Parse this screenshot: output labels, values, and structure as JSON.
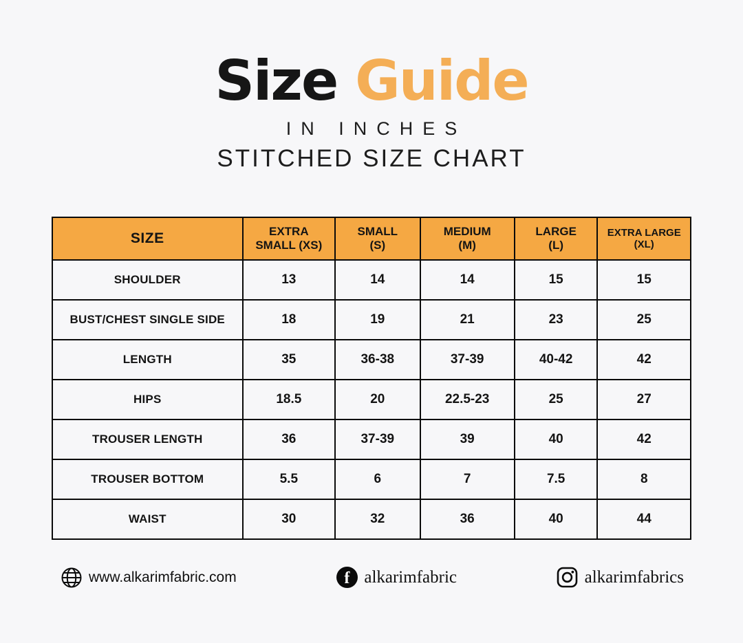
{
  "title": {
    "word_black": "Size",
    "word_orange": "Guide"
  },
  "subtitle_inches": "IN INCHES",
  "subtitle_chart": "STITCHED SIZE CHART",
  "colors": {
    "header_orange": "#f5a843",
    "title_orange": "#f4ae56",
    "text_black": "#141414",
    "background": "#f7f7f9",
    "border_black": "#0a0a0a"
  },
  "chart_data": {
    "type": "table",
    "title": "Size Guide in inches — Stitched Size Chart",
    "columns": [
      "SIZE",
      "EXTRA SMALL (XS)",
      "SMALL (S)",
      "MEDIUM (M)",
      "LARGE (L)",
      "EXTRA LARGE (XL)"
    ],
    "rows": [
      {
        "label": "SHOULDER",
        "values": [
          "13",
          "14",
          "14",
          "15",
          "15"
        ]
      },
      {
        "label": "BUST/CHEST SINGLE SIDE",
        "values": [
          "18",
          "19",
          "21",
          "23",
          "25"
        ]
      },
      {
        "label": "LENGTH",
        "values": [
          "35",
          "36-38",
          "37-39",
          "40-42",
          "42"
        ]
      },
      {
        "label": "HIPS",
        "values": [
          "18.5",
          "20",
          "22.5-23",
          "25",
          "27"
        ]
      },
      {
        "label": "TROUSER LENGTH",
        "values": [
          "36",
          "37-39",
          "39",
          "40",
          "42"
        ]
      },
      {
        "label": "TROUSER BOTTOM",
        "values": [
          "5.5",
          "6",
          "7",
          "7.5",
          "8"
        ]
      },
      {
        "label": "WAIST",
        "values": [
          "30",
          "32",
          "36",
          "40",
          "44"
        ]
      }
    ]
  },
  "table_header_lines": [
    {
      "key": "size",
      "lines": [
        "SIZE"
      ]
    },
    {
      "key": "xs",
      "lines": [
        "EXTRA",
        "SMALL (XS)"
      ]
    },
    {
      "key": "s",
      "lines": [
        "SMALL",
        "(S)"
      ]
    },
    {
      "key": "m",
      "lines": [
        "MEDIUM",
        "(M)"
      ]
    },
    {
      "key": "l",
      "lines": [
        "LARGE",
        "(L)"
      ]
    },
    {
      "key": "xl",
      "lines": [
        "EXTRA LARGE",
        "(XL)"
      ]
    }
  ],
  "footer": {
    "website": {
      "icon": "globe-icon",
      "text": "www.alkarimfabric.com"
    },
    "facebook": {
      "icon": "facebook-icon",
      "text": "alkarimfabric"
    },
    "instagram": {
      "icon": "instagram-icon",
      "text": "alkarimfabrics"
    }
  }
}
